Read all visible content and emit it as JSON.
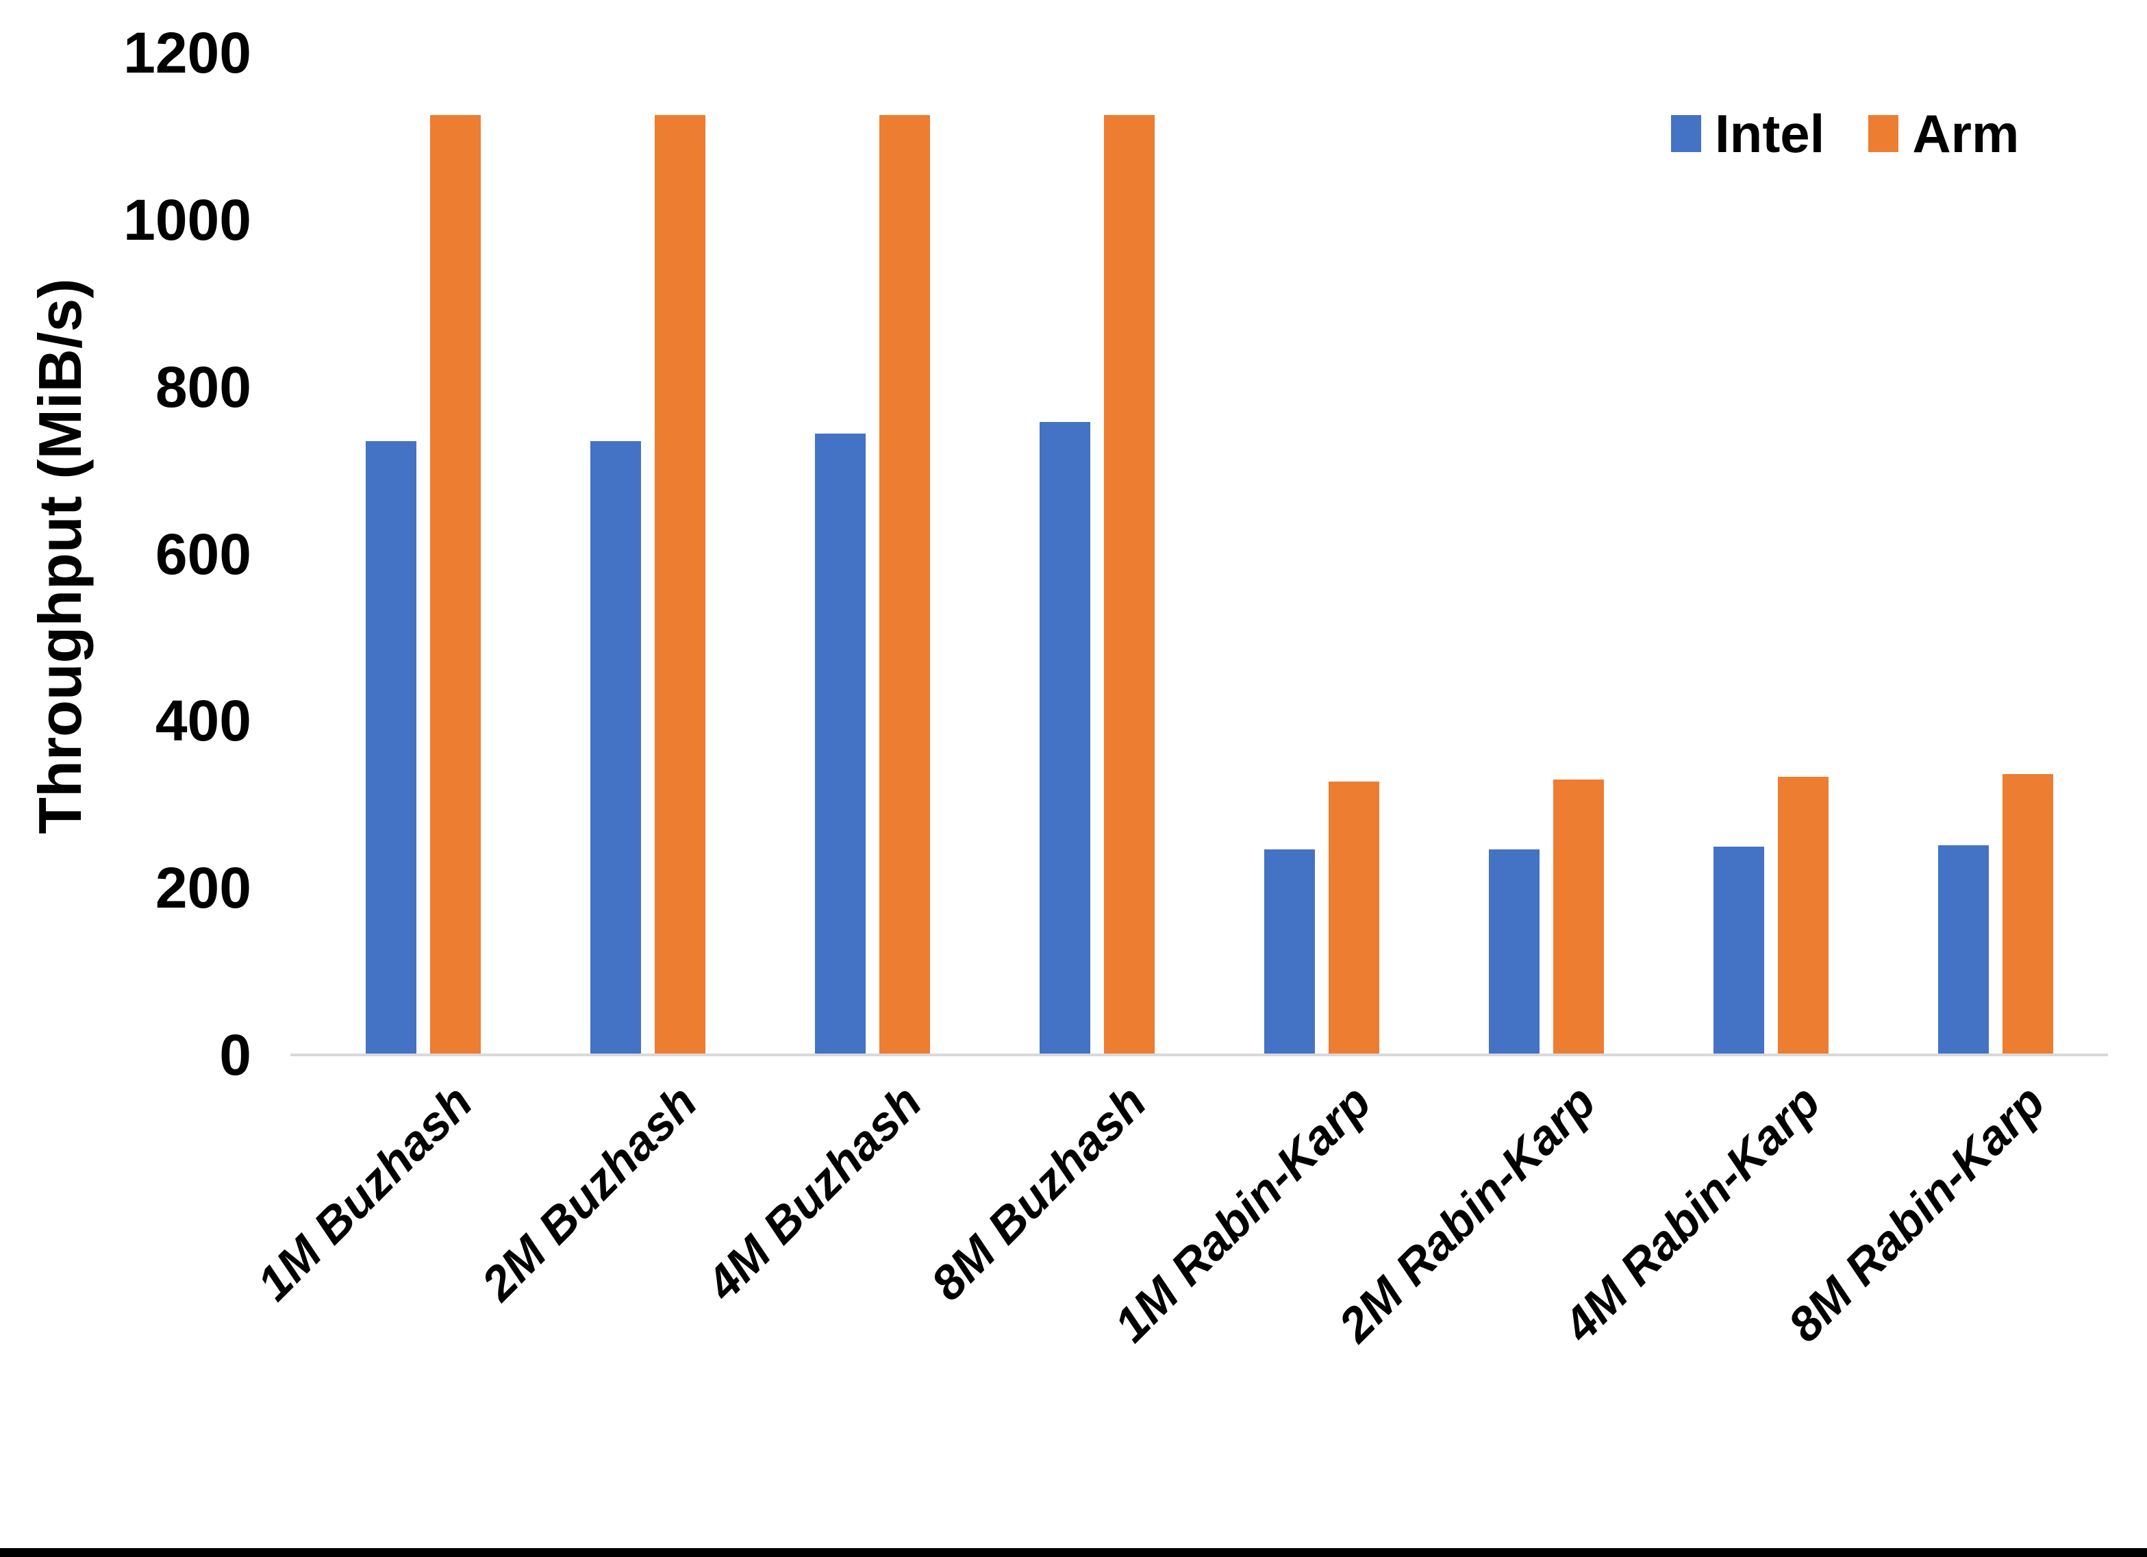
{
  "chart_data": {
    "type": "bar",
    "title": "",
    "categories": [
      "1M Buzhash",
      "2M Buzhash",
      "4M Buzhash",
      "8M Buzhash",
      "1M Rabin-Karp",
      "2M Rabin-Karp",
      "4M Rabin-Karp",
      "8M Rabin-Karp"
    ],
    "series": [
      {
        "name": "Intel",
        "color": "#4472C4",
        "values": [
          735,
          735,
          744,
          758,
          246,
          246,
          249,
          251
        ]
      },
      {
        "name": "Arm",
        "color": "#ED7D31",
        "values": [
          1125,
          1125,
          1125,
          1125,
          327,
          330,
          333,
          336
        ]
      }
    ],
    "xlabel": "",
    "ylabel": "Throughput (MiB/s)",
    "ylim": [
      0,
      1200
    ],
    "yticks": [
      0,
      200,
      400,
      600,
      800,
      1000,
      1200
    ],
    "grid": false,
    "legend_position": "top-right",
    "axis_line_color": "#D9D9D9",
    "background_color": "#FFFFFF",
    "bottom_edge_color": "#000000"
  }
}
